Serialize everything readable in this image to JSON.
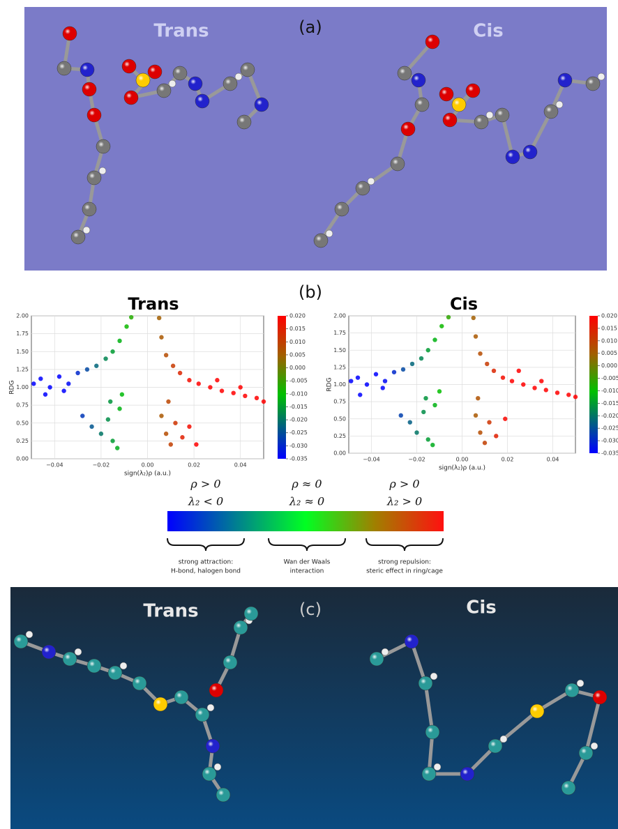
{
  "panels": {
    "a": {
      "label": "(a)",
      "left_title": "Trans",
      "right_title": "Cis"
    },
    "b": {
      "label": "(b)"
    },
    "c": {
      "label": "(c)",
      "left_title": "Trans",
      "right_title": "Cis"
    }
  },
  "chart_data": [
    {
      "type": "scatter",
      "title": "Trans",
      "x_label": "sign(λ₂)ρ (a.u.)",
      "y_label": "RDG",
      "x": [
        -0.049,
        -0.046,
        -0.042,
        -0.038,
        -0.034,
        -0.03,
        -0.026,
        -0.022,
        -0.018,
        -0.015,
        -0.012,
        -0.009,
        -0.007,
        -0.044,
        -0.036,
        -0.028,
        -0.024,
        -0.02,
        -0.017,
        -0.015,
        -0.013,
        -0.012,
        -0.011,
        -0.016,
        0.005,
        0.006,
        0.008,
        0.011,
        0.014,
        0.018,
        0.022,
        0.027,
        0.032,
        0.037,
        0.042,
        0.047,
        0.05,
        0.006,
        0.008,
        0.01,
        0.012,
        0.015,
        0.018,
        0.021,
        0.009,
        0.03,
        0.04
      ],
      "values": [
        1.05,
        1.12,
        1.0,
        1.15,
        1.05,
        1.2,
        1.25,
        1.3,
        1.4,
        1.5,
        1.65,
        1.85,
        1.98,
        0.9,
        0.95,
        0.6,
        0.45,
        0.35,
        0.55,
        0.25,
        0.15,
        0.7,
        0.9,
        0.8,
        1.97,
        1.7,
        1.45,
        1.3,
        1.2,
        1.1,
        1.05,
        1.0,
        0.95,
        0.92,
        0.88,
        0.85,
        0.8,
        0.6,
        0.35,
        0.2,
        0.5,
        0.3,
        0.45,
        0.2,
        0.8,
        1.1,
        1.0
      ],
      "xlim": [
        -0.05,
        0.05
      ],
      "ylim": [
        0,
        2
      ],
      "xticks": [
        {
          "value": -0.04,
          "label": "−0.04"
        },
        {
          "value": -0.02,
          "label": "−0.02"
        },
        {
          "value": 0,
          "label": "0.00"
        },
        {
          "value": 0.02,
          "label": "0.02"
        },
        {
          "value": 0.04,
          "label": "0.04"
        }
      ],
      "yticks": [
        {
          "value": 0,
          "label": "0.00"
        },
        {
          "value": 0.25,
          "label": "0.25"
        },
        {
          "value": 0.5,
          "label": "0.50"
        },
        {
          "value": 0.75,
          "label": "0.75"
        },
        {
          "value": 1,
          "label": "1.00"
        },
        {
          "value": 1.25,
          "label": "1.25"
        },
        {
          "value": 1.5,
          "label": "1.50"
        },
        {
          "value": 1.75,
          "label": "1.75"
        },
        {
          "value": 2,
          "label": "2.00"
        }
      ],
      "grid": true,
      "colorbar": {
        "lim": [
          -0.035,
          0.02
        ],
        "ticks": [
          {
            "value": 0.02,
            "label": "0.020"
          },
          {
            "value": 0.015,
            "label": "0.015"
          },
          {
            "value": 0.01,
            "label": "0.010"
          },
          {
            "value": 0.005,
            "label": "0.005"
          },
          {
            "value": 0,
            "label": "0.000"
          },
          {
            "value": -0.005,
            "label": "-0.005"
          },
          {
            "value": -0.01,
            "label": "-0.010"
          },
          {
            "value": -0.015,
            "label": "-0.015"
          },
          {
            "value": -0.02,
            "label": "-0.020"
          },
          {
            "value": -0.025,
            "label": "-0.025"
          },
          {
            "value": -0.03,
            "label": "-0.030"
          },
          {
            "value": -0.035,
            "label": "-0.035"
          }
        ]
      }
    },
    {
      "type": "scatter",
      "title": "Cis",
      "x_label": "sign(λ₂)ρ (a.u.)",
      "y_label": "RDG",
      "x": [
        -0.049,
        -0.046,
        -0.042,
        -0.038,
        -0.034,
        -0.03,
        -0.026,
        -0.022,
        -0.018,
        -0.015,
        -0.012,
        -0.009,
        -0.006,
        -0.045,
        -0.035,
        -0.027,
        -0.023,
        -0.02,
        -0.017,
        -0.015,
        -0.013,
        -0.012,
        -0.01,
        -0.016,
        0.005,
        0.006,
        0.008,
        0.011,
        0.014,
        0.018,
        0.022,
        0.027,
        0.032,
        0.037,
        0.042,
        0.047,
        0.05,
        0.006,
        0.008,
        0.01,
        0.012,
        0.015,
        0.019,
        0.007,
        0.025,
        0.035
      ],
      "values": [
        1.05,
        1.1,
        1.0,
        1.15,
        1.05,
        1.18,
        1.22,
        1.3,
        1.38,
        1.5,
        1.65,
        1.85,
        1.98,
        0.85,
        0.95,
        0.55,
        0.45,
        0.3,
        0.6,
        0.2,
        0.12,
        0.7,
        0.9,
        0.8,
        1.97,
        1.7,
        1.45,
        1.3,
        1.2,
        1.1,
        1.05,
        1.0,
        0.95,
        0.92,
        0.88,
        0.85,
        0.82,
        0.55,
        0.3,
        0.15,
        0.45,
        0.25,
        0.5,
        0.8,
        1.2,
        1.05
      ],
      "xlim": [
        -0.05,
        0.05
      ],
      "ylim": [
        0,
        2
      ],
      "xticks": [
        {
          "value": -0.04,
          "label": "−0.04"
        },
        {
          "value": -0.02,
          "label": "−0.02"
        },
        {
          "value": 0,
          "label": "0.00"
        },
        {
          "value": 0.02,
          "label": "0.02"
        },
        {
          "value": 0.04,
          "label": "0.04"
        }
      ],
      "yticks": [
        {
          "value": 0,
          "label": "0.00"
        },
        {
          "value": 0.25,
          "label": "0.25"
        },
        {
          "value": 0.5,
          "label": "0.50"
        },
        {
          "value": 0.75,
          "label": "0.75"
        },
        {
          "value": 1,
          "label": "1.00"
        },
        {
          "value": 1.25,
          "label": "1.25"
        },
        {
          "value": 1.5,
          "label": "1.50"
        },
        {
          "value": 1.75,
          "label": "1.75"
        },
        {
          "value": 2,
          "label": "2.00"
        }
      ],
      "grid": true,
      "colorbar": {
        "lim": [
          -0.035,
          0.02
        ],
        "ticks": [
          {
            "value": 0.02,
            "label": "0.020"
          },
          {
            "value": 0.015,
            "label": "0.015"
          },
          {
            "value": 0.01,
            "label": "0.010"
          },
          {
            "value": 0.005,
            "label": "0.005"
          },
          {
            "value": 0,
            "label": "0.000"
          },
          {
            "value": -0.005,
            "label": "-0.005"
          },
          {
            "value": -0.01,
            "label": "-0.010"
          },
          {
            "value": -0.015,
            "label": "-0.015"
          },
          {
            "value": -0.02,
            "label": "-0.020"
          },
          {
            "value": -0.025,
            "label": "-0.025"
          },
          {
            "value": -0.03,
            "label": "-0.030"
          },
          {
            "value": -0.035,
            "label": "-0.035"
          }
        ]
      }
    }
  ],
  "legend": [
    {
      "rho": "ρ > 0",
      "lambda": "λ₂ < 0",
      "lines": [
        "strong attraction:",
        "H-bond, halogen bond"
      ]
    },
    {
      "rho": "ρ ≈ 0",
      "lambda": "λ₂ ≈ 0",
      "lines": [
        "Wan der Waals",
        "interaction"
      ]
    },
    {
      "rho": "ρ > 0",
      "lambda": "λ₂ > 0",
      "lines": [
        "strong repulsion:",
        "steric effect in ring/cage"
      ]
    }
  ]
}
